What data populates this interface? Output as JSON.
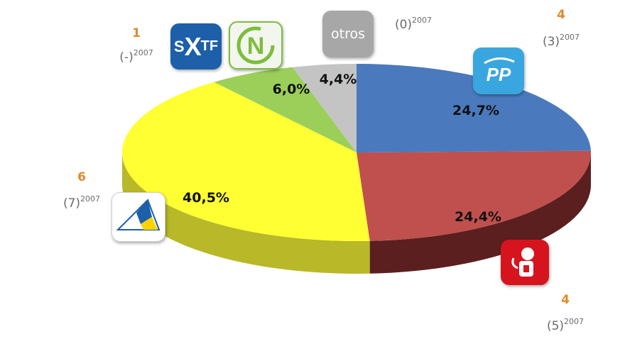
{
  "chart_data": {
    "type": "pie",
    "style": "3d",
    "slices": [
      {
        "key": "pp",
        "value": 24.7,
        "label": "24,7%",
        "color": "#4a7abd",
        "side_color": "#2c4f80",
        "seats": "4",
        "prev_base": "(3)",
        "prev_year": "2007"
      },
      {
        "key": "psoe",
        "value": 24.4,
        "label": "24,4%",
        "color": "#c0504d",
        "side_color": "#5a1f1e",
        "seats": "4",
        "prev_base": "(5)",
        "prev_year": "2007"
      },
      {
        "key": "cc",
        "value": 40.5,
        "label": "40,5%",
        "color": "#ffff33",
        "side_color": "#b8b829",
        "seats": "6",
        "prev_base": "(7)",
        "prev_year": "2007"
      },
      {
        "key": "nc",
        "value": 6.0,
        "label": "6,0%",
        "color": "#9bcf5a",
        "side_color": "#6a9440",
        "seats": "",
        "prev_base": "",
        "prev_year": ""
      },
      {
        "key": "otros",
        "value": 4.4,
        "label": "4,4%",
        "color": "#c4c4c4",
        "side_color": "#8f8f8f",
        "seats": "",
        "prev_base": "(0)",
        "prev_year": "2007"
      }
    ],
    "extra_annotations": [
      {
        "key": "sxtf",
        "seats": "1",
        "prev_base": "(-)",
        "prev_year": "2007"
      }
    ]
  },
  "logos": {
    "sxtf": {
      "text_s": "S",
      "text_x": "X",
      "text_tf": "TF",
      "color": "#1d5fa8"
    },
    "nc": {
      "letter": "N",
      "color": "#7dbd3c"
    },
    "otros": {
      "text": "otros",
      "color": "#a7a7a7"
    },
    "pp": {
      "text": "PP",
      "color": "#3aa6df"
    },
    "psoe": {
      "color": "#d6141d"
    },
    "cc": {
      "color_blue": "#1d5fa8",
      "color_yellow": "#ffd400"
    }
  }
}
